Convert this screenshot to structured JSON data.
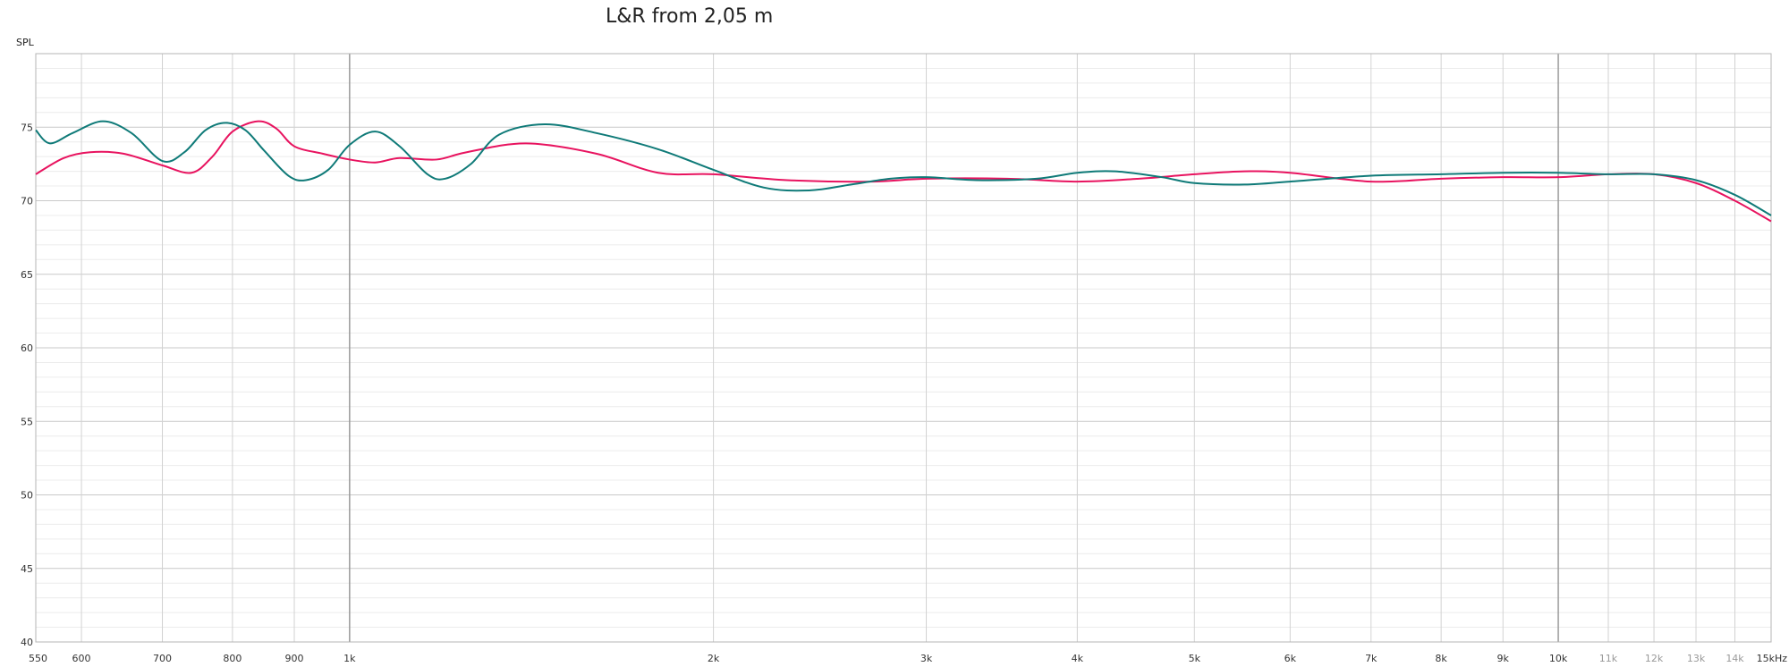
{
  "chart_data": {
    "type": "line",
    "title": "L&R from 2,05 m",
    "ylabel": "SPL",
    "xlabel": "",
    "x_scale": "log",
    "x_unit": "Hz",
    "xlim": [
      550,
      15000
    ],
    "ylim": [
      40,
      80
    ],
    "grid": true,
    "y_ticks": [
      40,
      45,
      50,
      55,
      60,
      65,
      70,
      75
    ],
    "y_tick_labels": [
      "40",
      "45",
      "50",
      "55",
      "60",
      "65",
      "70",
      "75"
    ],
    "x_ticks": [
      550,
      600,
      700,
      800,
      900,
      1000,
      2000,
      3000,
      4000,
      5000,
      6000,
      7000,
      8000,
      9000,
      10000,
      11000,
      12000,
      13000,
      14000,
      15000
    ],
    "x_tick_labels": [
      "550",
      "600",
      "700",
      "800",
      "900",
      "1k",
      "2k",
      "3k",
      "4k",
      "5k",
      "6k",
      "7k",
      "8k",
      "9k",
      "10k",
      "11k",
      "12k",
      "13k",
      "14k",
      "15kHz"
    ],
    "series": [
      {
        "color": "#e8135f",
        "x": [
          550,
          580,
          610,
          650,
          700,
          740,
          770,
          800,
          840,
          870,
          900,
          950,
          1000,
          1050,
          1100,
          1180,
          1250,
          1400,
          1600,
          1800,
          2000,
          2300,
          2700,
          3000,
          3500,
          4000,
          4500,
          5000,
          5500,
          6000,
          7000,
          8000,
          9000,
          10000,
          11000,
          12000,
          13000,
          14000,
          15000
        ],
        "y": [
          71.8,
          72.9,
          73.3,
          73.2,
          72.4,
          71.9,
          73.0,
          74.7,
          75.4,
          74.9,
          73.7,
          73.2,
          72.8,
          72.6,
          72.9,
          72.8,
          73.3,
          73.9,
          73.2,
          71.9,
          71.8,
          71.4,
          71.3,
          71.5,
          71.5,
          71.3,
          71.5,
          71.8,
          72.0,
          71.9,
          71.3,
          71.5,
          71.6,
          71.6,
          71.8,
          71.8,
          71.2,
          70.0,
          68.6
        ]
      },
      {
        "color": "#0f7a78",
        "x": [
          550,
          565,
          590,
          625,
          660,
          700,
          730,
          760,
          790,
          820,
          850,
          890,
          920,
          960,
          1000,
          1050,
          1100,
          1160,
          1200,
          1260,
          1330,
          1450,
          1600,
          1800,
          2000,
          2200,
          2400,
          2600,
          2800,
          3000,
          3300,
          3700,
          4000,
          4300,
          4700,
          5000,
          5500,
          6000,
          7000,
          8000,
          9000,
          10000,
          11000,
          12000,
          13000,
          14000,
          15000
        ],
        "y": [
          74.8,
          73.9,
          74.6,
          75.4,
          74.6,
          72.7,
          73.3,
          74.8,
          75.3,
          74.8,
          73.4,
          71.7,
          71.4,
          72.1,
          73.8,
          74.7,
          73.7,
          71.8,
          71.5,
          72.5,
          74.5,
          75.2,
          74.6,
          73.5,
          72.1,
          70.9,
          70.7,
          71.1,
          71.5,
          71.6,
          71.4,
          71.5,
          71.9,
          72.0,
          71.6,
          71.2,
          71.1,
          71.3,
          71.7,
          71.8,
          71.9,
          71.9,
          71.8,
          71.8,
          71.4,
          70.4,
          69.0
        ]
      }
    ]
  }
}
